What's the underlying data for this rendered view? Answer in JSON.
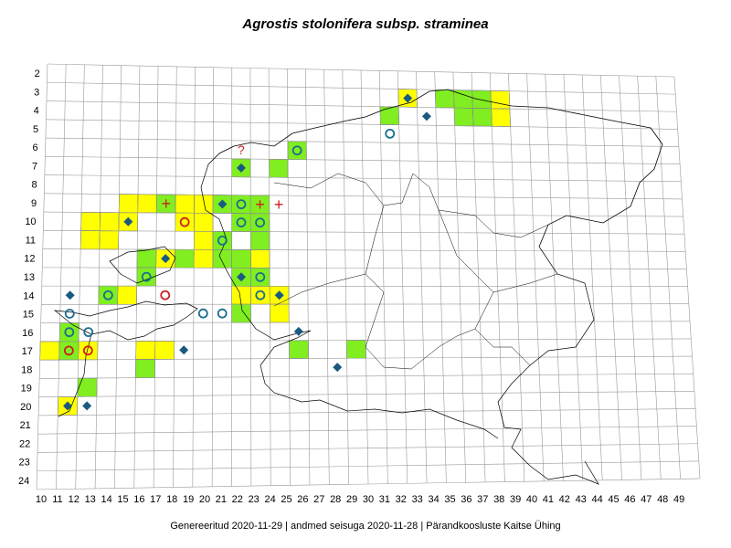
{
  "title": "Agrostis stolonifera subsp. straminea",
  "footer": "Genereeritud 2020-11-29  |  andmed seisuga 2020-11-28  |  Pärandkoosluste Kaitse Ühing",
  "colors": {
    "yellow": "#ffff00",
    "green": "#80ee20",
    "diamond": "#1a5a80",
    "ring_blue": "#1a6e8e",
    "ring_red": "#cc2020",
    "grid": "#999999",
    "outline": "#000000"
  },
  "axis": {
    "x_labels": [
      "10",
      "11",
      "12",
      "13",
      "14",
      "15",
      "16",
      "17",
      "18",
      "19",
      "20",
      "21",
      "22",
      "23",
      "24",
      "25",
      "26",
      "27",
      "28",
      "29",
      "30",
      "31",
      "32",
      "33",
      "34",
      "35",
      "36",
      "37",
      "38",
      "39",
      "40",
      "41",
      "42",
      "43",
      "44",
      "45",
      "46",
      "47",
      "48",
      "49"
    ],
    "y_labels": [
      "2",
      "3",
      "4",
      "5",
      "6",
      "7",
      "8",
      "9",
      "10",
      "11",
      "12",
      "13",
      "14",
      "15",
      "16",
      "17",
      "18",
      "19",
      "20",
      "21",
      "22",
      "23",
      "24"
    ]
  },
  "cells": {
    "yellow": [
      [
        29,
        3
      ],
      [
        34,
        3
      ],
      [
        34,
        4
      ],
      [
        14,
        9
      ],
      [
        15,
        9
      ],
      [
        17,
        9
      ],
      [
        18,
        9
      ],
      [
        12,
        10
      ],
      [
        13,
        10
      ],
      [
        14,
        10
      ],
      [
        17,
        10
      ],
      [
        18,
        10
      ],
      [
        12,
        11
      ],
      [
        13,
        11
      ],
      [
        18,
        11
      ],
      [
        16,
        12
      ],
      [
        18,
        12
      ],
      [
        21,
        12
      ],
      [
        21,
        13
      ],
      [
        14,
        14
      ],
      [
        20,
        14
      ],
      [
        21,
        14
      ],
      [
        22,
        14
      ],
      [
        22,
        15
      ],
      [
        10,
        17
      ],
      [
        12,
        17
      ],
      [
        15,
        17
      ],
      [
        16,
        17
      ],
      [
        11,
        20
      ]
    ],
    "green": [
      [
        31,
        3
      ],
      [
        32,
        3
      ],
      [
        33,
        3
      ],
      [
        32,
        4
      ],
      [
        33,
        4
      ],
      [
        28,
        4
      ],
      [
        23,
        6
      ],
      [
        20,
        7
      ],
      [
        22,
        7
      ],
      [
        16,
        9
      ],
      [
        19,
        9
      ],
      [
        20,
        9
      ],
      [
        21,
        9
      ],
      [
        20,
        10
      ],
      [
        21,
        10
      ],
      [
        19,
        11
      ],
      [
        21,
        11
      ],
      [
        15,
        12
      ],
      [
        17,
        12
      ],
      [
        19,
        12
      ],
      [
        20,
        12
      ],
      [
        15,
        13
      ],
      [
        20,
        13
      ],
      [
        21,
        13
      ],
      [
        13,
        14
      ],
      [
        20,
        15
      ],
      [
        11,
        16
      ],
      [
        11,
        17
      ],
      [
        23,
        17
      ],
      [
        26,
        17
      ],
      [
        15,
        18
      ],
      [
        12,
        19
      ]
    ]
  },
  "markers": {
    "diamond": [
      [
        29,
        3
      ],
      [
        30,
        4
      ],
      [
        20,
        7
      ],
      [
        19,
        9
      ],
      [
        14,
        10
      ],
      [
        11,
        14
      ],
      [
        16,
        12
      ],
      [
        20,
        13
      ],
      [
        22,
        14
      ],
      [
        23,
        16
      ],
      [
        17,
        17
      ],
      [
        25,
        18
      ],
      [
        11,
        20
      ],
      [
        12,
        20
      ]
    ],
    "ring_blue": [
      [
        23,
        6
      ],
      [
        28,
        5
      ],
      [
        20,
        9
      ],
      [
        20,
        10
      ],
      [
        19,
        11
      ],
      [
        15,
        13
      ],
      [
        21,
        13
      ],
      [
        21,
        14
      ],
      [
        13,
        14
      ],
      [
        18,
        15
      ],
      [
        19,
        15
      ],
      [
        11,
        15
      ],
      [
        12,
        16
      ],
      [
        11,
        16
      ],
      [
        21,
        10
      ]
    ],
    "ring_red": [
      [
        17,
        10
      ],
      [
        16,
        14
      ],
      [
        11,
        17
      ],
      [
        12,
        17
      ]
    ],
    "plus_red": [
      [
        16,
        9
      ],
      [
        21,
        9
      ],
      [
        22,
        9
      ]
    ],
    "question": [
      [
        20,
        6
      ]
    ]
  },
  "question_glyph": "?",
  "plus_glyph": "+"
}
